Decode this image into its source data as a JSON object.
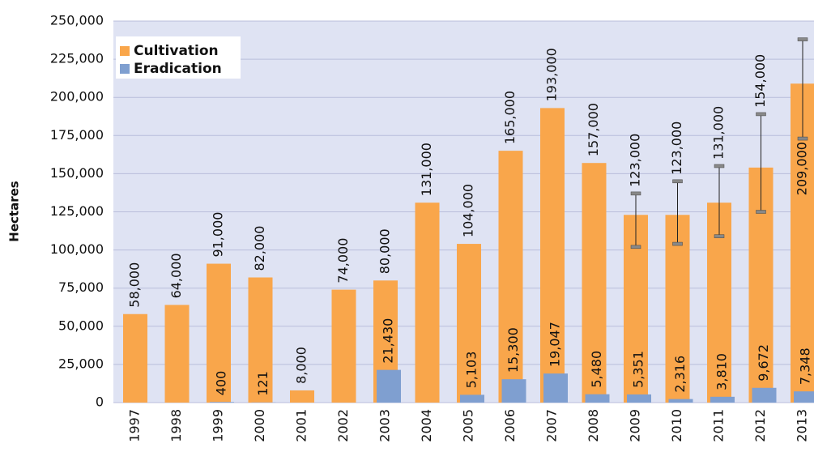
{
  "chart_data": {
    "type": "bar",
    "y_label": "Hectares",
    "categories": [
      "1997",
      "1998",
      "1999",
      "2000",
      "2001",
      "2002",
      "2003",
      "2004",
      "2005",
      "2006",
      "2007",
      "2008",
      "2009",
      "2010",
      "2011",
      "2012",
      "2013"
    ],
    "series": [
      {
        "name": "Cultivation",
        "color": "#f9a64b",
        "values": [
          58000,
          64000,
          91000,
          82000,
          8000,
          74000,
          80000,
          131000,
          104000,
          165000,
          193000,
          157000,
          123000,
          123000,
          131000,
          154000,
          209000
        ],
        "value_labels": [
          "58,000",
          "64,000",
          "91,000",
          "82,000",
          "8,000",
          "74,000",
          "80,000",
          "131,000",
          "104,000",
          "165,000",
          "193,000",
          "157,000",
          "123,000",
          "123,000",
          "131,000",
          "154,000",
          "209,000"
        ],
        "error_low": [
          null,
          null,
          null,
          null,
          null,
          null,
          null,
          null,
          null,
          null,
          null,
          null,
          102000,
          104000,
          109000,
          125000,
          173000
        ],
        "error_high": [
          null,
          null,
          null,
          null,
          null,
          null,
          null,
          null,
          null,
          null,
          null,
          null,
          137000,
          145000,
          155000,
          189000,
          238000
        ]
      },
      {
        "name": "Eradication",
        "color": "#7f9fd0",
        "values": [
          null,
          null,
          400,
          121,
          null,
          null,
          21430,
          null,
          5103,
          15300,
          19047,
          5480,
          5351,
          2316,
          3810,
          9672,
          7348
        ],
        "value_labels": [
          null,
          null,
          "400",
          "121",
          null,
          null,
          "21,430",
          null,
          "5,103",
          "15,300",
          "19,047",
          "5,480",
          "5,351",
          "2,316",
          "3,810",
          "9,672",
          "7,348"
        ]
      }
    ],
    "ylim": [
      0,
      250000
    ],
    "yticks": [
      {
        "value": 0,
        "label": "0"
      },
      {
        "value": 25000,
        "label": "25,000"
      },
      {
        "value": 50000,
        "label": "50,000"
      },
      {
        "value": 75000,
        "label": "75,000"
      },
      {
        "value": 100000,
        "label": "100,000"
      },
      {
        "value": 125000,
        "label": "125,000"
      },
      {
        "value": 150000,
        "label": "150,000"
      },
      {
        "value": 175000,
        "label": "175,000"
      },
      {
        "value": 200000,
        "label": "200,000"
      },
      {
        "value": 225000,
        "label": "225,000"
      },
      {
        "value": 250000,
        "label": "250,000"
      }
    ],
    "grid": true,
    "legend": "top-left"
  }
}
